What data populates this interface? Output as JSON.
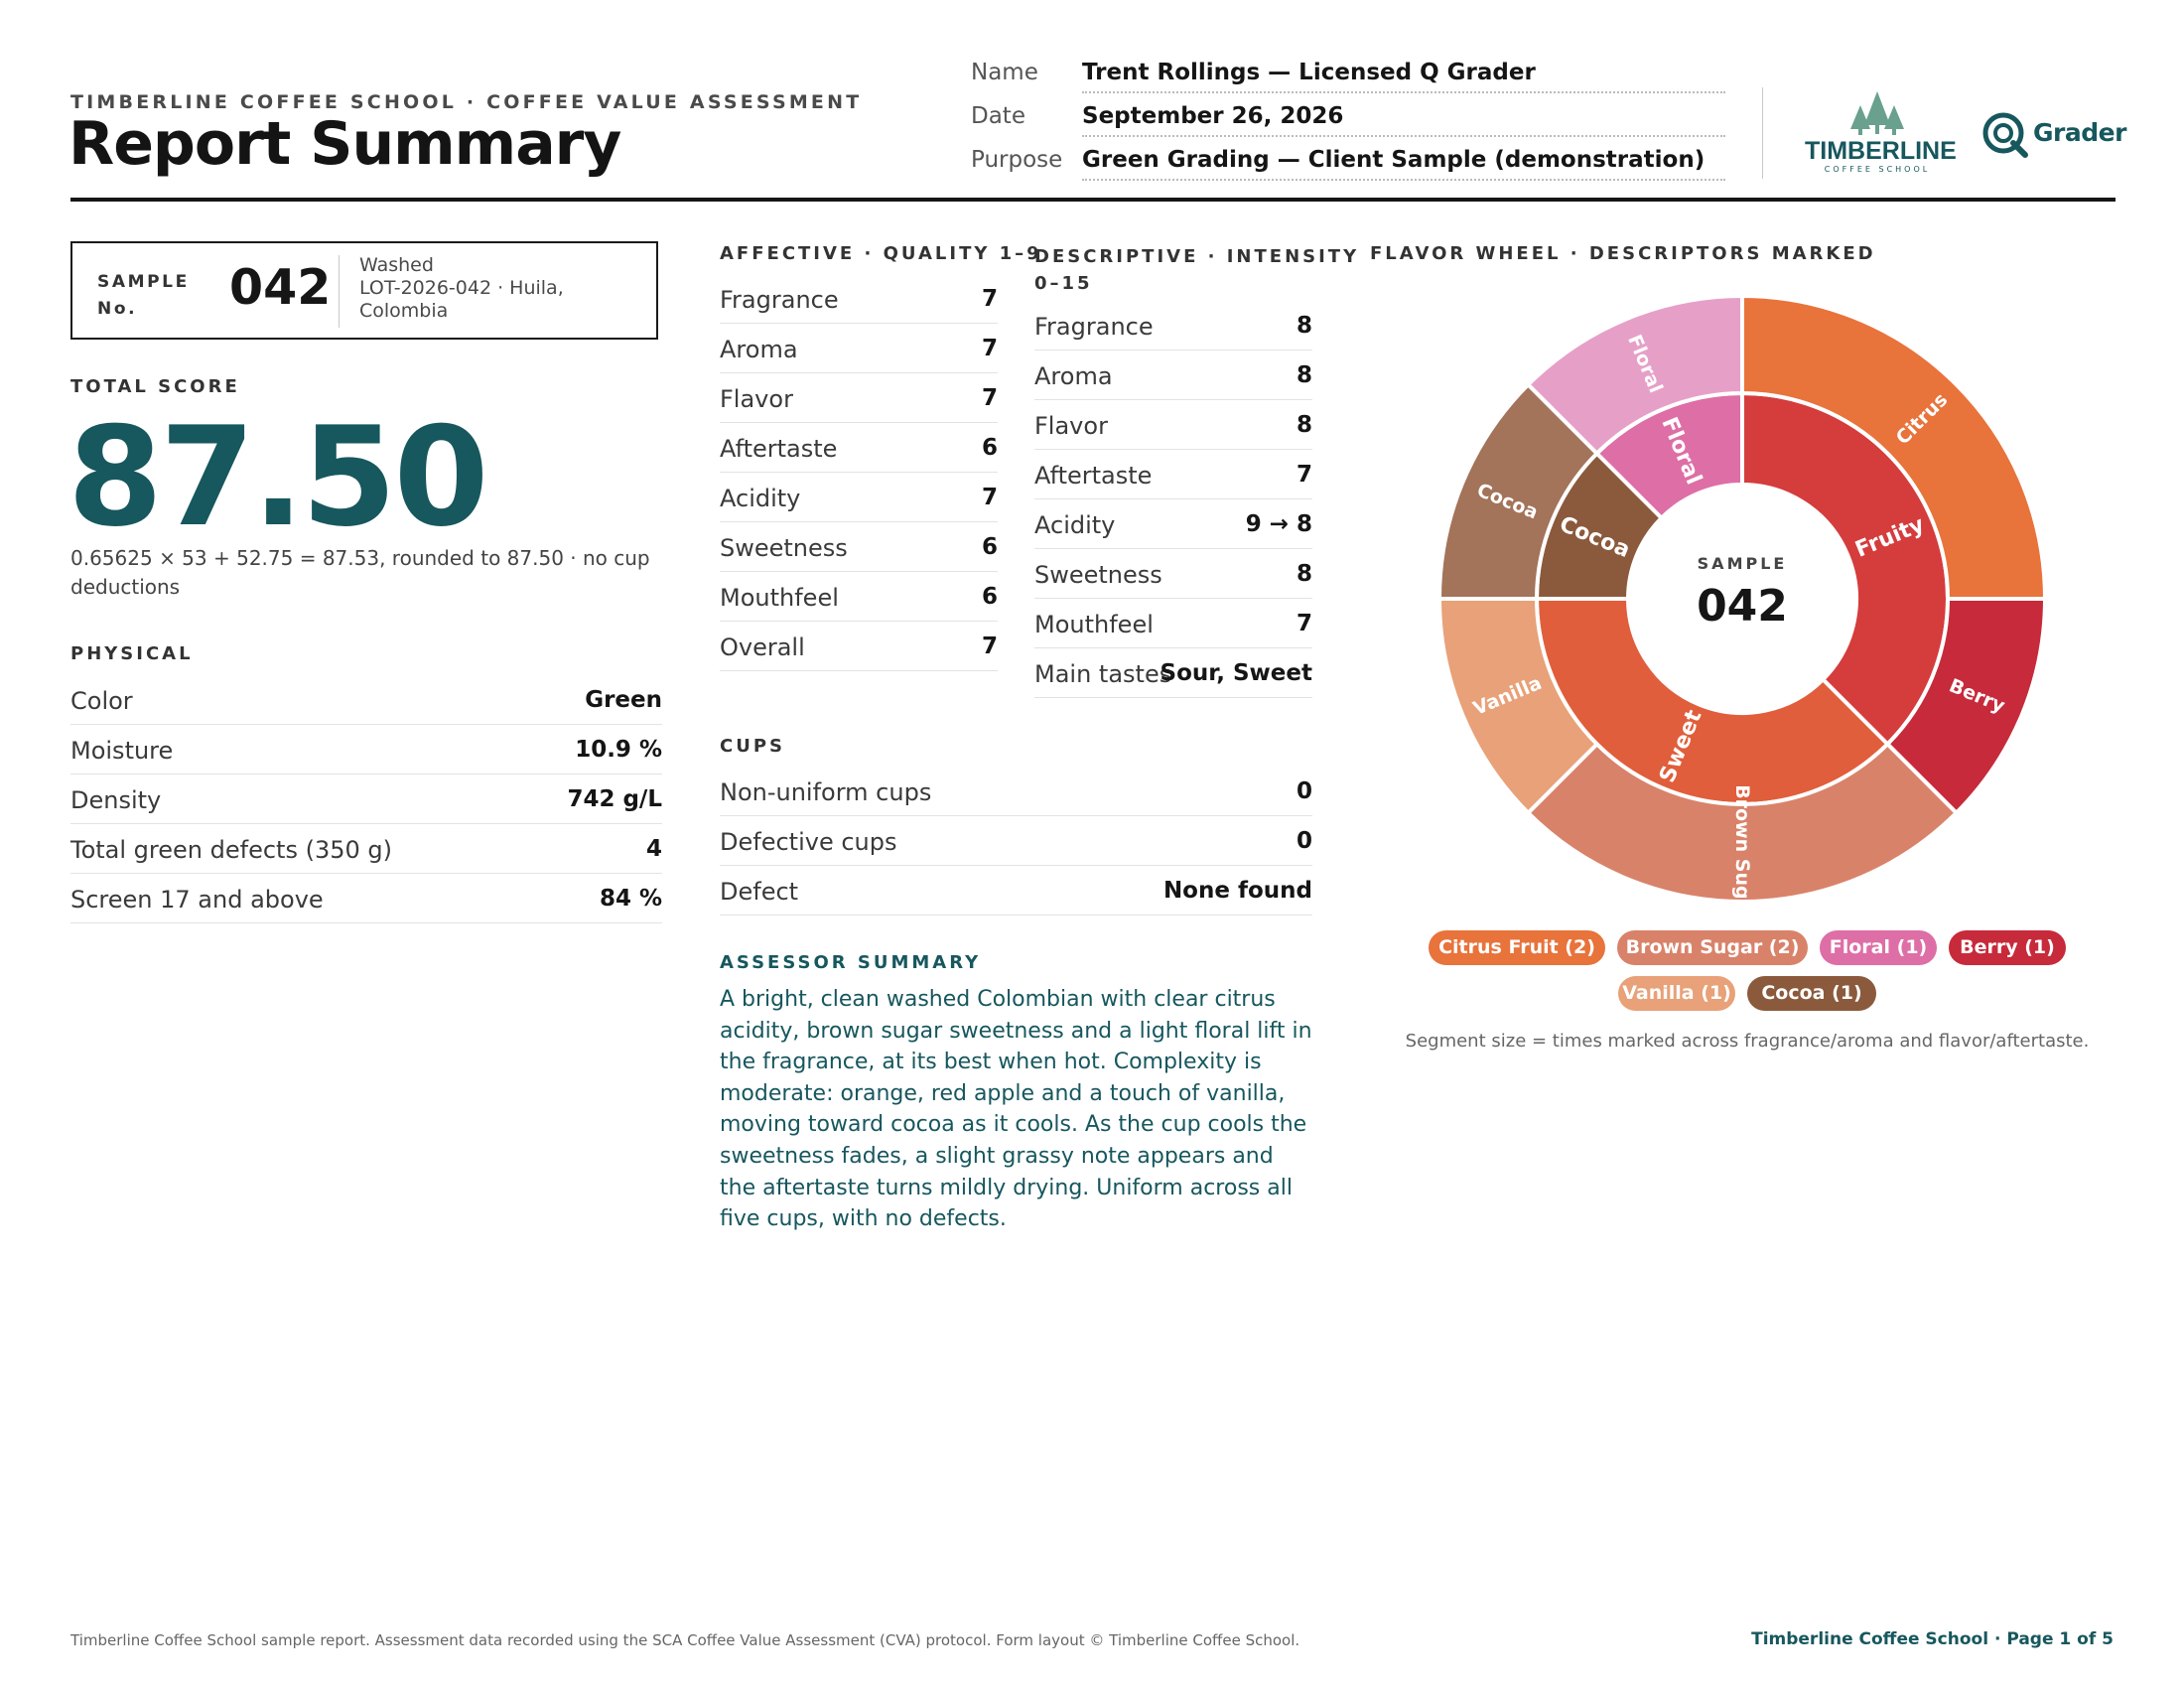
{
  "header": {
    "kicker": "TIMBERLINE COFFEE SCHOOL · COFFEE VALUE ASSESSMENT",
    "title": "Report Summary",
    "fields": [
      {
        "label": "Name",
        "value": "Trent Rollings — Licensed Q Grader"
      },
      {
        "label": "Date",
        "value": "September 26, 2026"
      },
      {
        "label": "Purpose",
        "value": "Green Grading — Client Sample (demonstration)"
      }
    ],
    "logo_name": "TIMBERLINE",
    "logo_sub": "COFFEE SCHOOL",
    "grader_logo": "Grader"
  },
  "sample": {
    "label_line1": "SAMPLE",
    "label_line2": "No.",
    "number": "042",
    "process": "Washed",
    "lot": "LOT-2026-042 · Huila, Colombia"
  },
  "total": {
    "label": "TOTAL SCORE",
    "value": "87.50",
    "formula": "0.65625 × 53 + 52.75 = 87.53, rounded to 87.50 · no cup deductions"
  },
  "physical": {
    "title": "PHYSICAL",
    "rows": [
      {
        "k": "Color",
        "v": "Green"
      },
      {
        "k": "Moisture",
        "v": "10.9 %"
      },
      {
        "k": "Density",
        "v": "742 g/L"
      },
      {
        "k": "Total green defects (350 g)",
        "v": "4"
      },
      {
        "k": "Screen 17 and above",
        "v": "84 %"
      }
    ]
  },
  "affective": {
    "title": "AFFECTIVE · QUALITY 1–9",
    "rows": [
      {
        "k": "Fragrance",
        "v": "7"
      },
      {
        "k": "Aroma",
        "v": "7"
      },
      {
        "k": "Flavor",
        "v": "7"
      },
      {
        "k": "Aftertaste",
        "v": "6"
      },
      {
        "k": "Acidity",
        "v": "7"
      },
      {
        "k": "Sweetness",
        "v": "6"
      },
      {
        "k": "Mouthfeel",
        "v": "6"
      },
      {
        "k": "Overall",
        "v": "7"
      }
    ]
  },
  "descriptive": {
    "title_line1": "DESCRIPTIVE · INTENSITY",
    "title_line2": "0–15",
    "rows": [
      {
        "k": "Fragrance",
        "v": "8"
      },
      {
        "k": "Aroma",
        "v": "8"
      },
      {
        "k": "Flavor",
        "v": "8"
      },
      {
        "k": "Aftertaste",
        "v": "7"
      },
      {
        "k": "Acidity",
        "v": "9 → 8"
      },
      {
        "k": "Sweetness",
        "v": "8"
      },
      {
        "k": "Mouthfeel",
        "v": "7"
      },
      {
        "k": "Main tastes",
        "v": "Sour, Sweet"
      }
    ]
  },
  "cups": {
    "title": "CUPS",
    "rows": [
      {
        "k": "Non-uniform cups",
        "v": "0"
      },
      {
        "k": "Defective cups",
        "v": "0"
      },
      {
        "k": "Defect",
        "v": "None found"
      }
    ]
  },
  "assessor": {
    "title": "ASSESSOR SUMMARY",
    "text": "A bright, clean washed Colombian with clear citrus acidity, brown sugar sweetness and a light floral lift in the fragrance, at its best when hot. Complexity is moderate: orange, red apple and a touch of vanilla, moving toward cocoa as it cools. As the cup cools the sweetness fades, a slight grassy note appears and the aftertaste turns mildly drying. Uniform across all five cups, with no defects."
  },
  "flavor_wheel": {
    "title": "FLAVOR WHEEL · DESCRIPTORS MARKED",
    "center_label": "SAMPLE",
    "center_number": "042",
    "inner": [
      {
        "label": "Fruity",
        "count": 3,
        "color": "#d53c3c"
      },
      {
        "label": "Sweet",
        "count": 3,
        "color": "#e05e3b"
      },
      {
        "label": "Cocoa",
        "count": 1,
        "color": "#8b5a3c"
      },
      {
        "label": "Floral",
        "count": 1,
        "color": "#de6ea6"
      }
    ],
    "outer": [
      {
        "label": "Citrus",
        "count": 2,
        "color": "#e8733b"
      },
      {
        "label": "Berry",
        "count": 1,
        "color": "#c72a3a"
      },
      {
        "label": "Brown Sugar",
        "count": 2,
        "color": "#d9826a"
      },
      {
        "label": "Vanilla",
        "count": 1,
        "color": "#e8a178"
      },
      {
        "label": "Cocoa",
        "count": 1,
        "color": "#a3735a"
      },
      {
        "label": "Floral",
        "count": 1,
        "color": "#e6a0c8"
      }
    ],
    "chips": [
      {
        "label": "Citrus Fruit (2)",
        "color": "#e8733b"
      },
      {
        "label": "Brown Sugar (2)",
        "color": "#d9826a"
      },
      {
        "label": "Floral (1)",
        "color": "#de6ea6"
      },
      {
        "label": "Berry (1)",
        "color": "#c72a3a"
      },
      {
        "label": "Vanilla (1)",
        "color": "#e8a178"
      },
      {
        "label": "Cocoa (1)",
        "color": "#8b5a3c"
      }
    ],
    "note": "Segment size = times marked across fragrance/aroma and flavor/aftertaste."
  },
  "footer": {
    "left": "Timberline Coffee School sample report. Assessment data recorded using the SCA Coffee Value Assessment (CVA) protocol. Form layout © Timberline Coffee School.",
    "right": "Timberline Coffee School · Page 1 of 5"
  },
  "colors": {
    "teal": "#17575e",
    "logo_green": "#6aa08e"
  }
}
